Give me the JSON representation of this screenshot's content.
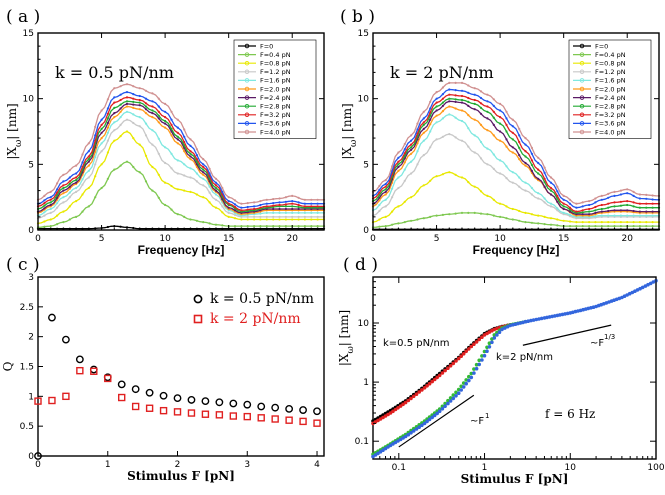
{
  "panels": {
    "a": {
      "letter": "( a )",
      "annotation": "k = 0.5 pN/nm"
    },
    "b": {
      "letter": "( b )",
      "annotation": "k = 2 pN/nm"
    },
    "c": {
      "letter": "( c )"
    },
    "d": {
      "letter": "( d )",
      "annotations": {
        "k05": "k=0.5 pN/nm",
        "k2": "k=2 pN/nm",
        "f6": "f = 6 Hz",
        "slope1": "~F",
        "slope1_exp": "1",
        "slope13": "~F",
        "slope13_exp": "1/3"
      }
    }
  },
  "legend_ab": [
    "F=0",
    "F=0.4 pN",
    "F=0.8 pN",
    "F=1.2 pN",
    "F=1.6 pN",
    "F=2.0 pN",
    "F=2.4 pN",
    "F=2.8 pN",
    "F=3.2 pN",
    "F=3.6 pN",
    "F=4.0 pN"
  ],
  "legend_ab_colors": [
    "#000000",
    "#7ec850",
    "#e8e800",
    "#c8c8c8",
    "#7fe8e0",
    "#ff9a1a",
    "#5a1a66",
    "#22aa33",
    "#e02020",
    "#2255ee",
    "#d09090"
  ],
  "chart_data": [
    {
      "type": "line",
      "title": "k = 0.5 pN/nm",
      "xlabel": "Frequency [Hz]",
      "ylabel": "|X",
      "ylabel_sub": "ω",
      "ylabel_unit": "| [nm]",
      "xlim": [
        0,
        22.5
      ],
      "ylim": [
        0,
        15
      ],
      "xticks": [
        0,
        5,
        10,
        15,
        20
      ],
      "yticks": [
        0,
        5,
        10,
        15
      ],
      "x": [
        0,
        1,
        2,
        3,
        4,
        5,
        6,
        7,
        8,
        9,
        10,
        11,
        12,
        13,
        14,
        15,
        16,
        17,
        18,
        19,
        20,
        21,
        22.5
      ],
      "series": [
        {
          "name": "F=0",
          "values": [
            0.1,
            0.1,
            0.1,
            0.1,
            0.1,
            0.15,
            0.3,
            0.2,
            0.1,
            0.1,
            0.1,
            0.1,
            0.1,
            0.1,
            0.1,
            0.1,
            0.1,
            0.1,
            0.1,
            0.1,
            0.1,
            0.1,
            0.1
          ]
        },
        {
          "name": "F=0.4 pN",
          "values": [
            0.2,
            0.3,
            0.6,
            1.0,
            1.8,
            3.2,
            4.6,
            5.2,
            4.4,
            3.0,
            1.9,
            1.2,
            0.8,
            0.6,
            0.4,
            0.3,
            0.3,
            0.3,
            0.3,
            0.3,
            0.3,
            0.3,
            0.3
          ]
        },
        {
          "name": "F=0.8 pN",
          "values": [
            0.5,
            0.8,
            1.4,
            2.2,
            3.2,
            5.0,
            6.8,
            7.5,
            6.5,
            4.8,
            3.6,
            3.1,
            2.9,
            2.5,
            1.7,
            1.0,
            0.8,
            0.8,
            0.8,
            0.8,
            0.8,
            0.8,
            0.8
          ]
        },
        {
          "name": "F=1.2 pN",
          "values": [
            0.9,
            1.3,
            2.1,
            2.9,
            4.0,
            6.0,
            7.6,
            8.4,
            7.9,
            6.5,
            5.1,
            4.3,
            4.0,
            3.4,
            2.3,
            1.3,
            1.0,
            1.0,
            1.0,
            1.0,
            1.0,
            1.0,
            1.0
          ]
        },
        {
          "name": "F=1.6 pN",
          "values": [
            1.1,
            1.6,
            2.5,
            3.2,
            4.5,
            6.6,
            8.2,
            9.0,
            8.6,
            7.6,
            6.3,
            5.3,
            4.7,
            3.9,
            2.7,
            1.5,
            1.1,
            1.2,
            1.3,
            1.3,
            1.3,
            1.3,
            1.3
          ]
        },
        {
          "name": "F=2.0 pN",
          "values": [
            1.3,
            1.8,
            2.8,
            3.5,
            4.9,
            7.0,
            8.6,
            9.4,
            9.2,
            8.6,
            7.8,
            6.6,
            5.4,
            4.2,
            2.9,
            1.6,
            1.2,
            1.3,
            1.5,
            1.5,
            1.5,
            1.5,
            1.5
          ]
        },
        {
          "name": "F=2.4 pN",
          "values": [
            1.4,
            1.9,
            3.0,
            3.6,
            5.2,
            7.4,
            8.9,
            9.6,
            9.5,
            8.9,
            8.1,
            6.9,
            5.6,
            4.4,
            3.0,
            1.7,
            1.3,
            1.4,
            1.6,
            1.6,
            1.6,
            1.6,
            1.6
          ]
        },
        {
          "name": "F=2.8 pN",
          "values": [
            1.6,
            2.1,
            3.2,
            3.8,
            5.4,
            7.7,
            9.3,
            9.8,
            9.7,
            9.1,
            8.3,
            7.1,
            5.8,
            4.6,
            3.2,
            1.9,
            1.4,
            1.5,
            1.7,
            1.8,
            1.8,
            1.7,
            1.7
          ]
        },
        {
          "name": "F=3.2 pN",
          "values": [
            1.8,
            2.3,
            3.4,
            4.0,
            5.6,
            8.0,
            9.7,
            10.1,
            9.9,
            9.4,
            8.6,
            7.4,
            6.0,
            4.8,
            3.4,
            2.0,
            1.5,
            1.6,
            1.8,
            1.9,
            2.0,
            1.8,
            1.8
          ]
        },
        {
          "name": "F=3.6 pN",
          "values": [
            2.0,
            2.5,
            3.7,
            4.3,
            6.0,
            8.4,
            10.1,
            10.5,
            10.2,
            9.8,
            9.0,
            7.8,
            6.4,
            5.0,
            3.6,
            2.2,
            1.7,
            1.8,
            2.0,
            2.1,
            2.2,
            2.0,
            2.0
          ]
        },
        {
          "name": "F=4.0 pN",
          "values": [
            2.3,
            2.9,
            4.2,
            4.9,
            6.6,
            9.1,
            10.8,
            11.1,
            10.8,
            10.4,
            9.6,
            8.4,
            6.9,
            5.4,
            3.9,
            2.5,
            2.0,
            2.1,
            2.3,
            2.4,
            2.6,
            2.3,
            2.3
          ]
        }
      ]
    },
    {
      "type": "line",
      "title": "k = 2 pN/nm",
      "xlabel": "Frequency [Hz]",
      "ylabel": "|X",
      "ylabel_sub": "ω",
      "ylabel_unit": "| [nm]",
      "xlim": [
        0,
        22.5
      ],
      "ylim": [
        0,
        15
      ],
      "xticks": [
        0,
        5,
        10,
        15,
        20
      ],
      "yticks": [
        0,
        5,
        10,
        15
      ],
      "x": [
        0,
        1,
        2,
        3,
        4,
        5,
        6,
        7,
        8,
        9,
        10,
        11,
        12,
        13,
        14,
        15,
        16,
        17,
        18,
        19,
        20,
        21,
        22.5
      ],
      "series": [
        {
          "name": "F=0",
          "values": [
            0.05,
            0.05,
            0.05,
            0.05,
            0.05,
            0.05,
            0.05,
            0.05,
            0.05,
            0.05,
            0.05,
            0.05,
            0.05,
            0.05,
            0.05,
            0.05,
            0.05,
            0.05,
            0.05,
            0.05,
            0.05,
            0.05,
            0.05
          ]
        },
        {
          "name": "F=0.4 pN",
          "values": [
            0.2,
            0.3,
            0.5,
            0.7,
            0.9,
            1.1,
            1.2,
            1.3,
            1.3,
            1.2,
            1.0,
            0.8,
            0.6,
            0.5,
            0.4,
            0.3,
            0.3,
            0.3,
            0.3,
            0.3,
            0.3,
            0.3,
            0.3
          ]
        },
        {
          "name": "F=0.8 pN",
          "values": [
            0.6,
            1.0,
            1.8,
            2.5,
            3.4,
            4.1,
            4.4,
            4.0,
            3.3,
            2.6,
            2.0,
            1.6,
            1.3,
            1.1,
            0.9,
            0.7,
            0.6,
            0.6,
            0.6,
            0.6,
            0.6,
            0.6,
            0.6
          ]
        },
        {
          "name": "F=1.2 pN",
          "values": [
            1.1,
            1.8,
            3.2,
            4.3,
            5.7,
            6.9,
            7.3,
            6.8,
            5.9,
            5.0,
            4.3,
            3.6,
            3.0,
            2.4,
            1.8,
            1.2,
            0.9,
            0.9,
            1.0,
            1.0,
            1.0,
            1.0,
            1.0
          ]
        },
        {
          "name": "F=1.6 pN",
          "values": [
            1.5,
            2.3,
            4.0,
            5.2,
            6.8,
            8.2,
            8.8,
            8.3,
            7.2,
            6.2,
            5.3,
            4.4,
            3.6,
            2.8,
            2.0,
            1.3,
            1.0,
            1.0,
            1.1,
            1.1,
            1.1,
            1.1,
            1.1
          ]
        },
        {
          "name": "F=2.0 pN",
          "values": [
            1.8,
            2.7,
            4.5,
            5.8,
            7.4,
            8.7,
            9.4,
            9.1,
            8.4,
            7.6,
            6.8,
            5.9,
            4.9,
            3.8,
            2.7,
            1.6,
            1.1,
            1.1,
            1.3,
            1.4,
            1.4,
            1.3,
            1.3
          ]
        },
        {
          "name": "F=2.4 pN",
          "values": [
            2.0,
            2.9,
            4.8,
            6.1,
            7.7,
            9.1,
            9.8,
            9.7,
            9.2,
            8.5,
            7.5,
            6.3,
            5.1,
            3.9,
            2.7,
            1.6,
            1.2,
            1.2,
            1.4,
            1.5,
            1.5,
            1.4,
            1.4
          ]
        },
        {
          "name": "F=2.8 pN",
          "values": [
            2.2,
            3.1,
            5.0,
            6.3,
            8.0,
            9.4,
            10.0,
            9.9,
            9.6,
            9.0,
            8.1,
            6.9,
            5.6,
            4.3,
            3.0,
            1.8,
            1.3,
            1.4,
            1.6,
            1.8,
            1.9,
            1.7,
            1.7
          ]
        },
        {
          "name": "F=3.2 pN",
          "values": [
            2.4,
            3.3,
            5.2,
            6.5,
            8.2,
            9.7,
            10.3,
            10.2,
            9.9,
            9.4,
            8.6,
            7.4,
            6.0,
            4.6,
            3.2,
            2.0,
            1.4,
            1.6,
            1.9,
            2.1,
            2.2,
            2.0,
            2.0
          ]
        },
        {
          "name": "F=3.6 pN",
          "values": [
            2.6,
            3.5,
            5.5,
            6.8,
            8.5,
            10.0,
            10.7,
            10.6,
            10.3,
            9.8,
            9.1,
            7.9,
            6.5,
            5.1,
            3.6,
            2.3,
            1.7,
            1.9,
            2.3,
            2.6,
            2.8,
            2.4,
            2.3
          ]
        },
        {
          "name": "F=4.0 pN",
          "values": [
            2.9,
            3.8,
            5.9,
            7.2,
            9.0,
            10.5,
            11.2,
            11.2,
            10.8,
            10.3,
            9.6,
            8.4,
            7.0,
            5.5,
            4.0,
            2.6,
            2.0,
            2.2,
            2.6,
            2.9,
            3.1,
            2.7,
            2.6
          ]
        }
      ]
    },
    {
      "type": "scatter",
      "xlabel": "Stimulus F [pN]",
      "ylabel": "Q",
      "xlim": [
        0,
        4.1
      ],
      "ylim": [
        0,
        3
      ],
      "xticks": [
        0,
        1,
        2,
        3,
        4
      ],
      "yticks": [
        0,
        0.5,
        1,
        1.5,
        2,
        2.5,
        3
      ],
      "ytick_labels": [
        "0",
        "0.5",
        "1",
        "1.5",
        "2",
        "2.5",
        "3"
      ],
      "series": [
        {
          "name": "k = 0.5 pN/nm",
          "color": "#000000",
          "marker": "circle",
          "x": [
            0,
            0.2,
            0.4,
            0.6,
            0.8,
            1.0,
            1.2,
            1.4,
            1.6,
            1.8,
            2.0,
            2.2,
            2.4,
            2.6,
            2.8,
            3.0,
            3.2,
            3.4,
            3.6,
            3.8,
            4.0
          ],
          "values": [
            0,
            2.32,
            1.95,
            1.62,
            1.45,
            1.32,
            1.2,
            1.12,
            1.06,
            1.01,
            0.97,
            0.94,
            0.92,
            0.9,
            0.88,
            0.86,
            0.83,
            0.81,
            0.79,
            0.77,
            0.75
          ]
        },
        {
          "name": "k = 2 pN/nm",
          "color": "#e02020",
          "marker": "square",
          "x": [
            0,
            0.2,
            0.4,
            0.6,
            0.8,
            1.0,
            1.2,
            1.4,
            1.6,
            1.8,
            2.0,
            2.2,
            2.4,
            2.6,
            2.8,
            3.0,
            3.2,
            3.4,
            3.6,
            3.8,
            4.0
          ],
          "values": [
            0.92,
            0.93,
            1.0,
            1.43,
            1.42,
            1.3,
            0.98,
            0.83,
            0.8,
            0.76,
            0.74,
            0.72,
            0.7,
            0.69,
            0.67,
            0.66,
            0.64,
            0.62,
            0.6,
            0.58,
            0.55
          ]
        }
      ]
    },
    {
      "type": "line",
      "scale": "log-log",
      "xlabel": "Stimulus F [pN]",
      "ylabel": "|X",
      "ylabel_sub": "ω",
      "ylabel_unit": "| [nm]",
      "xlim": [
        0.05,
        100
      ],
      "ylim": [
        0.05,
        60
      ],
      "xticks": [
        0.1,
        1,
        10,
        100
      ],
      "xtick_labels": [
        "0.1",
        "1",
        "10",
        "100"
      ],
      "yticks": [
        0.1,
        1,
        10
      ],
      "ytick_labels": [
        "0.1",
        "1",
        "10"
      ],
      "series": [
        {
          "name": "k=0.5 pN/nm (black)",
          "color": "#000000",
          "x": [
            0.05,
            0.08,
            0.12,
            0.2,
            0.3,
            0.5,
            0.7,
            1.0,
            1.3,
            1.6,
            2.0
          ],
          "values": [
            0.22,
            0.33,
            0.48,
            0.85,
            1.4,
            2.6,
            4.2,
            6.6,
            8.0,
            8.7,
            9.3
          ]
        },
        {
          "name": "k=0.5 pN/nm (red)",
          "color": "#e02020",
          "x": [
            0.05,
            0.08,
            0.12,
            0.2,
            0.3,
            0.5,
            0.7,
            1.0,
            1.3,
            1.6,
            2.0
          ],
          "values": [
            0.2,
            0.3,
            0.45,
            0.8,
            1.3,
            2.5,
            4.0,
            6.3,
            7.8,
            8.6,
            9.3
          ]
        },
        {
          "name": "k=2 pN/nm (green)",
          "color": "#33bb33",
          "x": [
            0.05,
            0.08,
            0.12,
            0.2,
            0.3,
            0.5,
            0.7,
            1.0,
            1.3,
            1.6,
            2.0,
            3.0
          ],
          "values": [
            0.06,
            0.09,
            0.13,
            0.22,
            0.35,
            0.75,
            1.4,
            3.3,
            6.3,
            8.2,
            9.3,
            10.5
          ]
        },
        {
          "name": "k=2 pN/nm (blue)",
          "color": "#3366dd",
          "x": [
            0.05,
            0.08,
            0.12,
            0.2,
            0.3,
            0.5,
            0.7,
            1.0,
            1.3,
            1.6,
            2.0,
            3.0,
            5.0,
            10,
            20,
            40,
            70,
            100
          ],
          "values": [
            0.055,
            0.085,
            0.12,
            0.2,
            0.32,
            0.65,
            1.2,
            2.8,
            5.6,
            7.8,
            9.1,
            10.5,
            12.2,
            14.8,
            19.0,
            27.0,
            40.0,
            52.0
          ]
        }
      ]
    }
  ]
}
